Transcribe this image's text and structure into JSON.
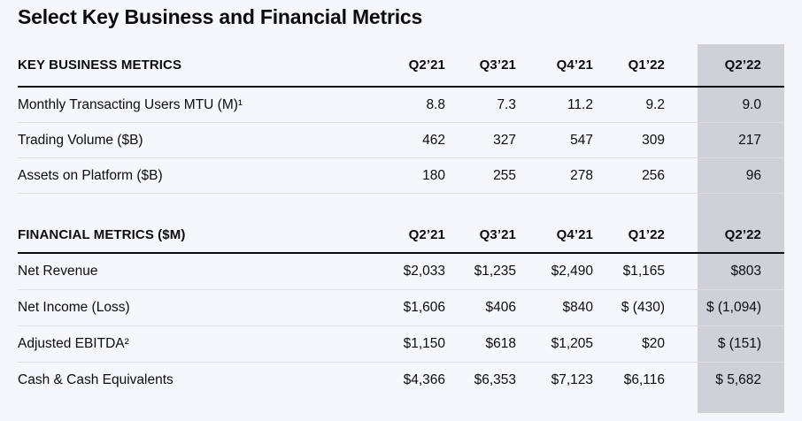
{
  "page": {
    "title": "Select Key Business and Financial Metrics"
  },
  "columns": [
    "Q2’21",
    "Q3’21",
    "Q4’21",
    "Q1’22",
    "Q2’22"
  ],
  "highlight": {
    "column": "Q2’22",
    "band_color": "#ced1d8"
  },
  "colors": {
    "background": "#f5f7fb",
    "text": "#0b0c10",
    "thick_rule": "#0c0d12",
    "thin_rule": "#dcdfe6"
  },
  "tables": [
    {
      "header": "KEY BUSINESS METRICS",
      "rows": [
        {
          "label": "Monthly Transacting Users MTU (M)¹",
          "values": [
            "8.8",
            "7.3",
            "11.2",
            "9.2",
            "9.0"
          ]
        },
        {
          "label": "Trading Volume ($B)",
          "values": [
            "462",
            "327",
            "547",
            "309",
            "217"
          ]
        },
        {
          "label": "Assets on Platform ($B)",
          "values": [
            "180",
            "255",
            "278",
            "256",
            "96"
          ]
        }
      ]
    },
    {
      "header": "FINANCIAL METRICS ($M)",
      "rows": [
        {
          "label": "Net Revenue",
          "values": [
            "$2,033",
            "$1,235",
            "$2,490",
            "$1,165",
            "$803"
          ]
        },
        {
          "label": "Net Income (Loss)",
          "values": [
            "$1,606",
            "$406",
            "$840",
            "$ (430)",
            "$ (1,094)"
          ]
        },
        {
          "label": "Adjusted EBITDA²",
          "values": [
            "$1,150",
            "$618",
            "$1,205",
            "$20",
            "$ (151)"
          ]
        },
        {
          "label": "Cash & Cash Equivalents",
          "values": [
            "$4,366",
            "$6,353",
            "$7,123",
            "$6,116",
            "$ 5,682"
          ]
        }
      ]
    }
  ]
}
